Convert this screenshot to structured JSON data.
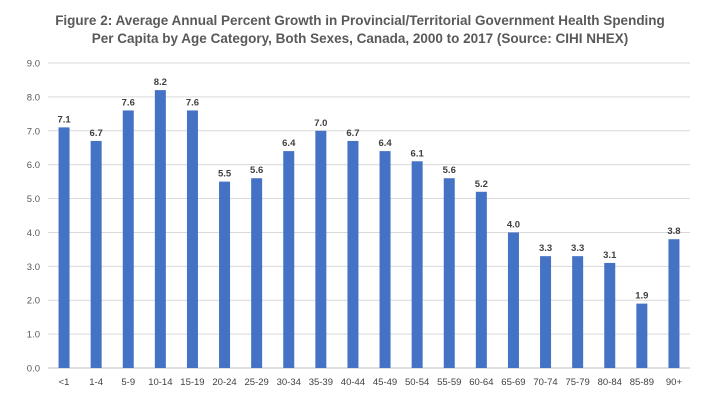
{
  "chart_data": {
    "type": "bar",
    "title_line1": "Figure 2: Average  Annual Percent Growth in Provincial/Territorial Government Health Spending",
    "title_line2": "Per Capita by Age Category, Both Sexes, Canada, 2000 to 2017 (Source: CIHI NHEX)",
    "categories": [
      "<1",
      "1-4",
      "5-9",
      "10-14",
      "15-19",
      "20-24",
      "25-29",
      "30-34",
      "35-39",
      "40-44",
      "45-49",
      "50-54",
      "55-59",
      "60-64",
      "65-69",
      "70-74",
      "75-79",
      "80-84",
      "85-89",
      "90+"
    ],
    "values": [
      7.1,
      6.7,
      7.6,
      8.2,
      7.6,
      5.5,
      5.6,
      6.4,
      7.0,
      6.7,
      6.4,
      6.1,
      5.6,
      5.2,
      4.0,
      3.3,
      3.3,
      3.1,
      1.9,
      3.8
    ],
    "value_labels": [
      "7.1",
      "6.7",
      "7.6",
      "8.2",
      "7.6",
      "5.5",
      "5.6",
      "6.4",
      "7.0",
      "6.7",
      "6.4",
      "6.1",
      "5.6",
      "5.2",
      "4.0",
      "3.3",
      "3.3",
      "3.1",
      "1.9",
      "3.8"
    ],
    "ylim": [
      0,
      9
    ],
    "yticks": [
      "0.0",
      "1.0",
      "2.0",
      "3.0",
      "4.0",
      "5.0",
      "6.0",
      "7.0",
      "8.0",
      "9.0"
    ],
    "grid": true,
    "bar_color": "#4472C4",
    "grid_color": "#D9D9D9"
  }
}
